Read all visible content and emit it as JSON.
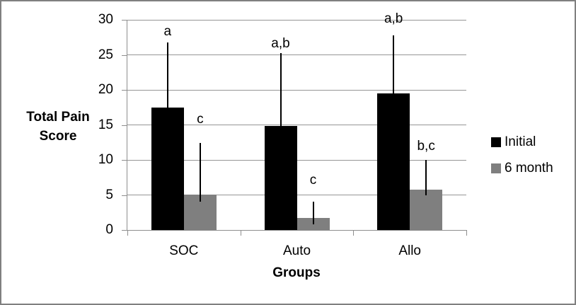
{
  "chart_data": {
    "type": "bar",
    "title": "",
    "xlabel": "Groups",
    "ylabel": "Total Pain Score",
    "ylim": [
      0,
      30
    ],
    "yticks": [
      0,
      5,
      10,
      15,
      20,
      25,
      30
    ],
    "categories": [
      "SOC",
      "Auto",
      "Allo"
    ],
    "series": [
      {
        "name": "Initial",
        "color": "#000000",
        "values": [
          17.5,
          14.8,
          19.5
        ],
        "error_low": [
          17.5,
          14.8,
          19.5
        ],
        "error_high": [
          26.8,
          25.3,
          27.8
        ],
        "annotations": [
          "a",
          "a,b",
          "a,b"
        ],
        "annotation_y": [
          27.3,
          25.6,
          29.1
        ]
      },
      {
        "name": "6 month",
        "color": "#7f7f7f",
        "values": [
          5.1,
          1.7,
          5.8
        ],
        "error_low": [
          4.0,
          0.8,
          4.9
        ],
        "error_high": [
          12.4,
          4.0,
          10.0
        ],
        "annotations": [
          "c",
          "c",
          "b,c"
        ],
        "annotation_y": [
          14.7,
          6.1,
          10.9
        ]
      }
    ],
    "grid": true,
    "legend_position": "right"
  },
  "colors": {
    "background": "#ffffff",
    "border": "#808080",
    "gridline": "#969696",
    "axis": "#8e8e8e",
    "error_bar": "#000000",
    "text": "#000000"
  }
}
